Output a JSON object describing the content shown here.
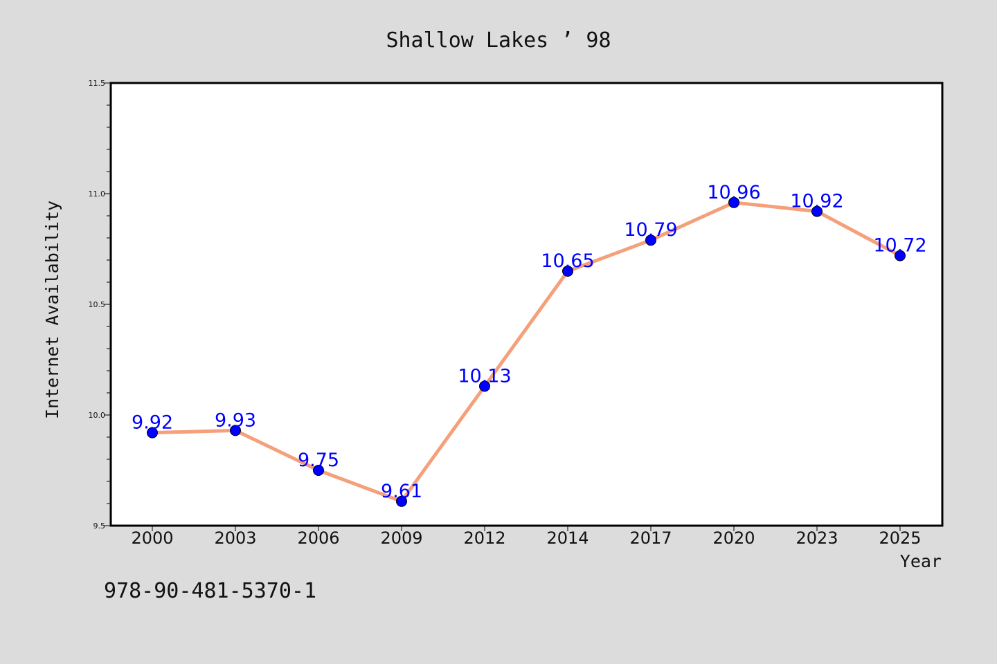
{
  "chart_data": {
    "type": "line",
    "title": "Shallow Lakes ’ 98",
    "xlabel": "Year",
    "ylabel": "Internet Availability",
    "categories": [
      "2000",
      "2003",
      "2006",
      "2009",
      "2012",
      "2014",
      "2017",
      "2020",
      "2023",
      "2025"
    ],
    "series": [
      {
        "values": [
          9.92,
          9.93,
          9.75,
          9.61,
          10.13,
          10.65,
          10.79,
          10.96,
          10.92,
          10.72
        ],
        "line_color": "#f4a07a",
        "marker_color": "#0000ff"
      }
    ],
    "data_labels": [
      "9.92",
      "9.93",
      "9.75",
      "9.61",
      "10.13",
      "10.65",
      "10.79",
      "10.96",
      "10.92",
      "10.72"
    ],
    "ylim": [
      9.5,
      11.5
    ],
    "yticks": [
      "9.5",
      "10.0",
      "10.5",
      "11.0",
      "11.5"
    ],
    "grid": false,
    "legend": "none"
  },
  "annotation": {
    "isbn": "978-90-481-5370-1"
  },
  "colors": {
    "page_background": "#dcdcdc",
    "plot_background": "#ffffff"
  }
}
